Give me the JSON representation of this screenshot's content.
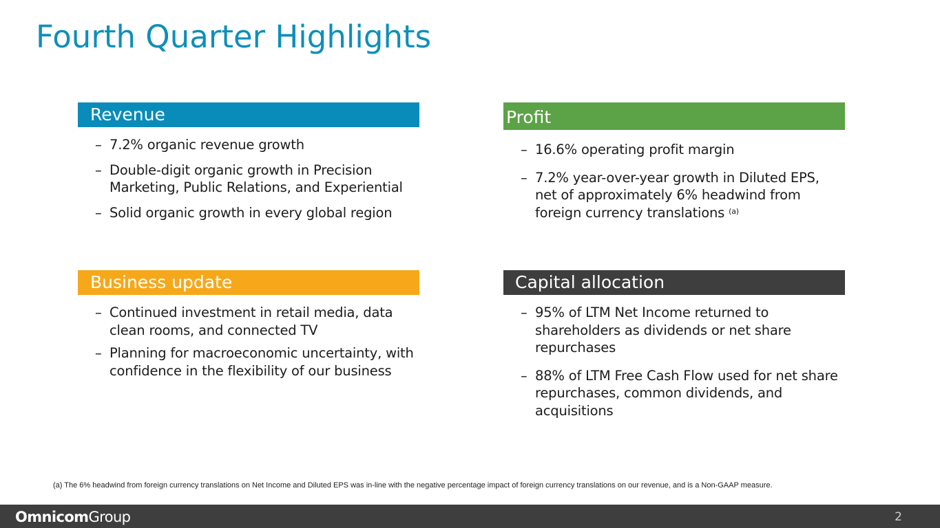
{
  "slide": {
    "title": "Fourth Quarter Highlights",
    "page_number": "2"
  },
  "colors": {
    "title": "#0f8fb9",
    "revenue": "#0a8cba",
    "profit": "#5ba346",
    "business": "#f6a81a",
    "capital": "#3e3e3e",
    "footer": "#3e3e3e"
  },
  "revenue": {
    "header": "Revenue",
    "bullets": [
      "7.2%  organic revenue growth",
      "Double-digit organic growth in Precision Marketing, Public Relations, and Experiential",
      "Solid organic growth in every global region"
    ]
  },
  "profit": {
    "header": "Profit",
    "bullets": [
      "16.6%  operating profit margin",
      "7.2%  year-over-year growth in Diluted EPS, net of approximately 6%  headwind from foreign currency translations"
    ],
    "note_marker": "(a)"
  },
  "business": {
    "header": "Business update",
    "bullets": [
      "Continued investment in retail media, data clean rooms, and connected TV",
      "Planning for macroeconomic uncertainty, with confidence in the flexibility of our business"
    ]
  },
  "capital": {
    "header": "Capital allocation",
    "bullets": [
      "95%  of LTM Net Income returned to shareholders as dividends or net share repurchases",
      "88%  of LTM Free Cash Flow used for net share repurchases, common dividends, and acquisitions"
    ]
  },
  "footnote": "(a) The 6% headwind from foreign currency translations on Net Income and Diluted EPS was in-line with the negative percentage impact of foreign currency translations on our revenue, and is a Non-GAAP measure.",
  "footer": {
    "logo_bold": "Omnicom",
    "logo_light": "Group",
    "dash": "–"
  }
}
